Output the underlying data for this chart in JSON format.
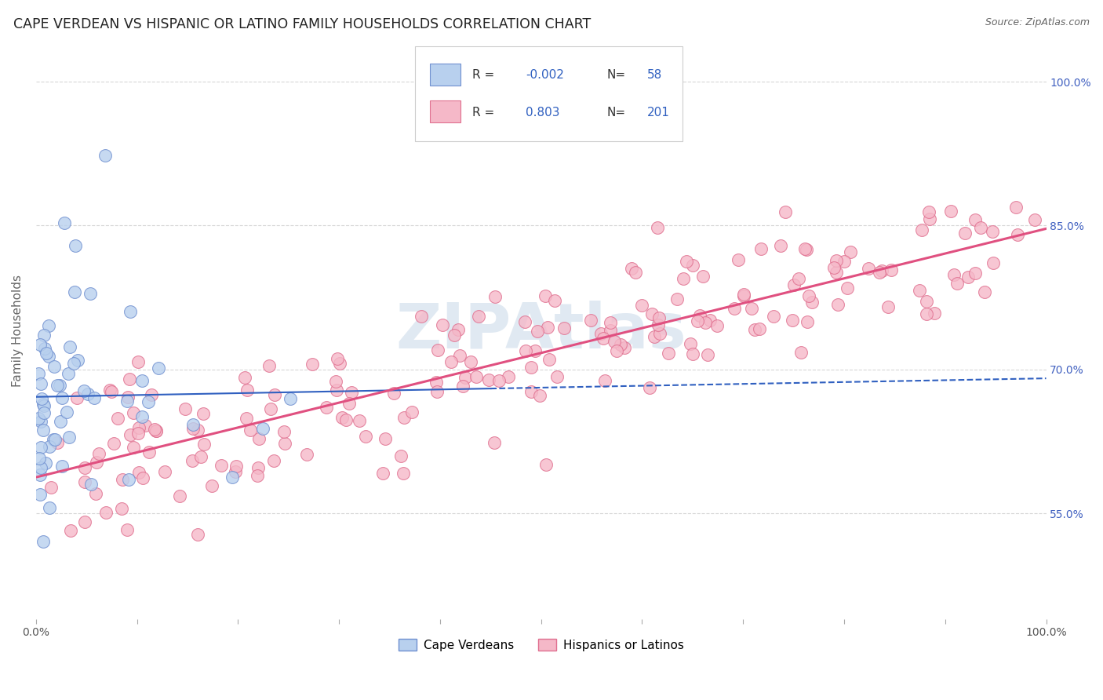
{
  "title": "CAPE VERDEAN VS HISPANIC OR LATINO FAMILY HOUSEHOLDS CORRELATION CHART",
  "source": "Source: ZipAtlas.com",
  "ylabel": "Family Households",
  "blue_line_color": "#3060c0",
  "pink_line_color": "#e05080",
  "blue_scatter_face": "#b8d0ee",
  "blue_scatter_edge": "#7090d0",
  "pink_scatter_face": "#f5b8c8",
  "pink_scatter_edge": "#e07090",
  "xlim": [
    0.0,
    1.0
  ],
  "ylim": [
    0.44,
    1.04
  ],
  "y_ticks": [
    0.55,
    0.7,
    0.85,
    1.0
  ],
  "y_tick_labels": [
    "55.0%",
    "70.0%",
    "85.0%",
    "100.0%"
  ],
  "grid_color": "#cccccc",
  "background_color": "#ffffff",
  "watermark_color": "#c8d8e8",
  "title_fontsize": 12.5,
  "source_fontsize": 9,
  "tick_fontsize": 10,
  "ylabel_fontsize": 11
}
